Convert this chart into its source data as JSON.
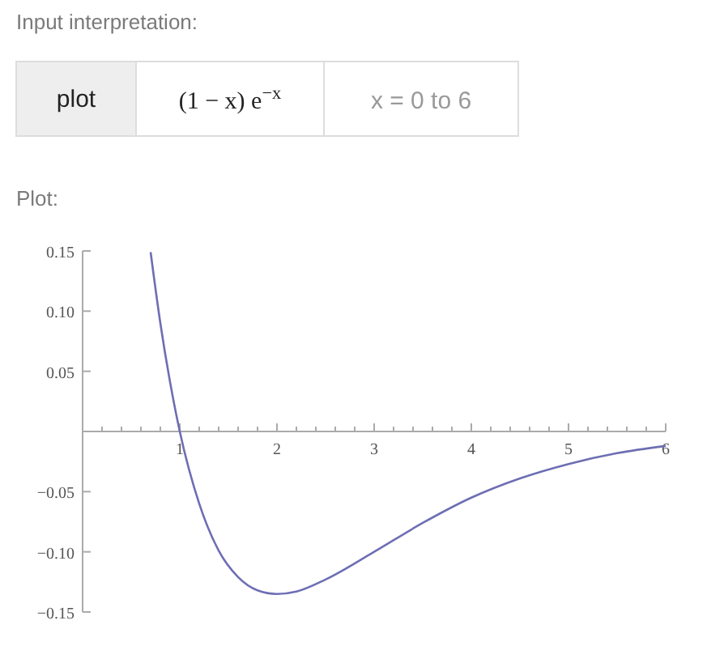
{
  "chart_data": {
    "type": "line",
    "title": "Input interpretation:",
    "annotations": [
      "plot",
      "(1 − x) e$^{−x}$",
      "x = 0 to 6",
      "Plot:"
    ],
    "x": [
      0.7,
      0.8,
      0.9,
      1.0,
      1.2,
      1.4,
      1.6,
      1.8,
      2.0,
      2.2,
      2.5,
      3.0,
      3.5,
      4.0,
      4.5,
      5.0,
      5.5,
      6.0
    ],
    "series": [
      {
        "color": "#6e6eb4",
        "values": [
          0.149,
          0.09,
          0.041,
          0,
          -0.06,
          -0.099,
          -0.121,
          -0.132,
          -0.135,
          -0.133,
          -0.123,
          -0.1,
          -0.076,
          -0.055,
          -0.039,
          -0.027,
          -0.018,
          -0.012
        ]
      }
    ],
    "xlim": [
      0,
      6
    ],
    "ylim": [
      -0.15,
      0.15
    ],
    "xticks": [
      1,
      2,
      3,
      4,
      5,
      6,
      {
        "value": 0.2,
        "label": null
      },
      {
        "value": 0.4,
        "label": null
      },
      {
        "value": 0.6,
        "label": null
      },
      {
        "value": 0.8,
        "label": null
      },
      {
        "value": 1.2,
        "label": null
      },
      {
        "value": 1.4,
        "label": null
      },
      {
        "value": 1.6,
        "label": null
      },
      {
        "value": 1.8,
        "label": null
      },
      {
        "value": 2.2,
        "label": null
      },
      {
        "value": 2.4,
        "label": null
      },
      {
        "value": 2.6,
        "label": null
      },
      {
        "value": 2.8,
        "label": null
      },
      {
        "value": 3.2,
        "label": null
      },
      {
        "value": 3.4,
        "label": null
      },
      {
        "value": 3.6,
        "label": null
      },
      {
        "value": 3.8,
        "label": null
      },
      {
        "value": 4.2,
        "label": null
      },
      {
        "value": 4.4,
        "label": null
      },
      {
        "value": 4.6,
        "label": null
      },
      {
        "value": 4.8,
        "label": null
      },
      {
        "value": 5.2,
        "label": null
      },
      {
        "value": 5.4,
        "label": null
      },
      {
        "value": 5.6,
        "label": null
      },
      {
        "value": 5.8,
        "label": null
      }
    ],
    "yticks": [
      0.15,
      {
        "value": 0.1,
        "label": "0.10"
      },
      0.05,
      {
        "value": -0.05,
        "label": "−0.05"
      },
      {
        "value": -0.1,
        "label": "−0.10"
      },
      {
        "value": -0.15,
        "label": "−0.15"
      }
    ],
    "grid": false,
    "marker": "none",
    "line_style": "solid"
  }
}
